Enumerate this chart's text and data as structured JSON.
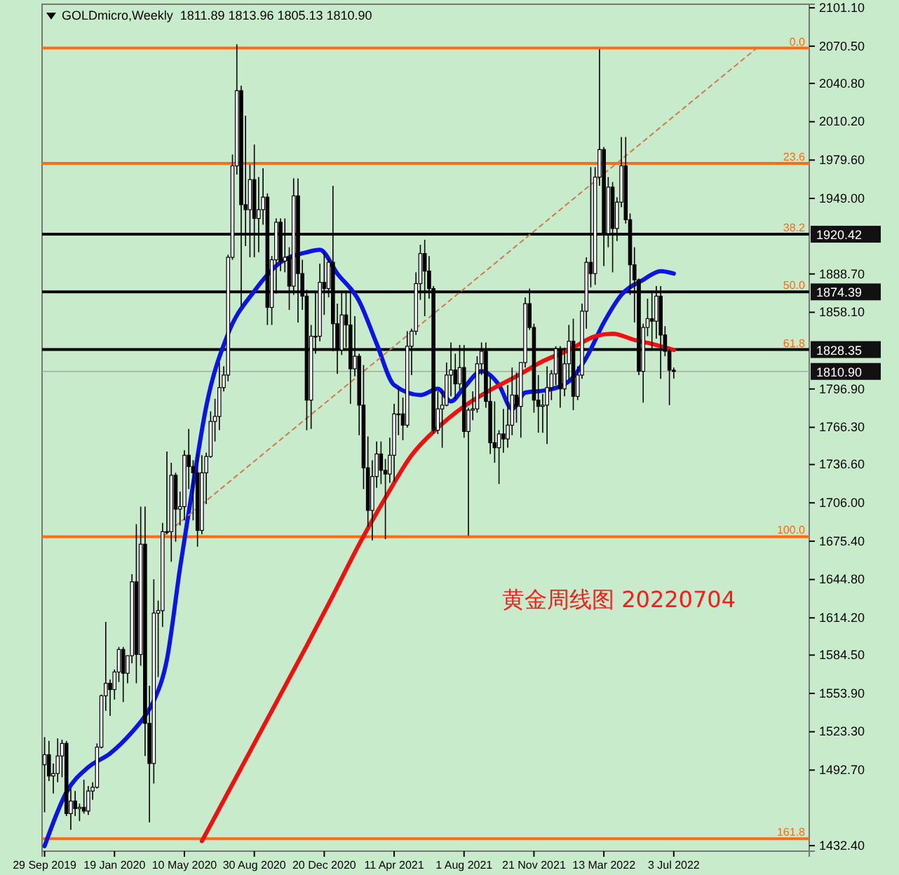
{
  "chart_data": {
    "type": "candlestick",
    "title": "GOLDmicro,Weekly  1811.89 1813.96 1805.13 1810.90",
    "annotations": [
      "黄金周线图 20220704",
      {
        "text": "0.0",
        "x": "2023-02-05",
        "y": 2069
      },
      {
        "text": "23.6",
        "x": "2023-02-05",
        "y": 1977
      },
      {
        "text": "38.2",
        "x": "2023-02-05",
        "y": 1920.42
      },
      {
        "text": "50.0",
        "x": "2023-02-05",
        "y": 1874.39
      },
      {
        "text": "61.8",
        "x": "2023-02-05",
        "y": 1828.35
      },
      {
        "text": "100.0",
        "x": "2023-02-05",
        "y": 1679
      },
      {
        "text": "161.8",
        "x": "2023-02-05",
        "y": 1438
      }
    ],
    "xlim": [
      "2019-09-25",
      "2023-02-05"
    ],
    "xticks": [
      {
        "value": "2019-09-29",
        "label": "29 Sep 2019"
      },
      {
        "value": "2020-01-19",
        "label": "19 Jan 2020"
      },
      {
        "value": "2020-05-10",
        "label": "10 May 2020"
      },
      {
        "value": "2020-08-30",
        "label": "30 Aug 2020"
      },
      {
        "value": "2020-12-20",
        "label": "20 Dec 2020"
      },
      {
        "value": "2021-04-11",
        "label": "11 Apr 2021"
      },
      {
        "value": "2021-08-01",
        "label": "1 Aug 2021"
      },
      {
        "value": "2021-11-21",
        "label": "21 Nov 2021"
      },
      {
        "value": "2022-03-13",
        "label": "13 Mar 2022"
      },
      {
        "value": "2022-07-03",
        "label": "3 Jul 2022"
      }
    ],
    "ylim": [
      1428,
      2104
    ],
    "yticks": [
      {
        "value": 2101.1,
        "label": "2101.10"
      },
      {
        "value": 2070.5,
        "label": "2070.50"
      },
      {
        "value": 2040.8,
        "label": "2040.80"
      },
      {
        "value": 2010.2,
        "label": "2010.20"
      },
      {
        "value": 1979.6,
        "label": "1979.60"
      },
      {
        "value": 1949,
        "label": "1949.00"
      },
      {
        "value": 1888.7,
        "label": "1888.70"
      },
      {
        "value": 1858.1,
        "label": "1858.10"
      },
      {
        "value": 1796.9,
        "label": "1796.90"
      },
      {
        "value": 1766.3,
        "label": "1766.30"
      },
      {
        "value": 1736.6,
        "label": "1736.60"
      },
      {
        "value": 1706,
        "label": "1706.00"
      },
      {
        "value": 1675.4,
        "label": "1675.40"
      },
      {
        "value": 1644.8,
        "label": "1644.80"
      },
      {
        "value": 1614.2,
        "label": "1614.20"
      },
      {
        "value": 1584.5,
        "label": "1584.50"
      },
      {
        "value": 1553.9,
        "label": "1553.90"
      },
      {
        "value": 1523.3,
        "label": "1523.30"
      },
      {
        "value": 1492.7,
        "label": "1492.70"
      },
      {
        "value": 1432.4,
        "label": "1432.40"
      }
    ],
    "ref_lines": [
      {
        "axis": "y",
        "value": 2069,
        "color": "#ff6a13"
      },
      {
        "axis": "y",
        "value": 1977,
        "color": "#ff6a13"
      },
      {
        "axis": "y",
        "value": 1679,
        "color": "#ff6a13"
      },
      {
        "axis": "y",
        "value": 1438,
        "color": "#ff6a13"
      },
      {
        "axis": "y",
        "value": 1920.42,
        "label": "1920.42",
        "color": "#000000"
      },
      {
        "axis": "y",
        "value": 1874.39,
        "label": "1874.39",
        "color": "#000000"
      },
      {
        "axis": "y",
        "value": 1828.35,
        "label": "1828.35",
        "color": "#000000"
      },
      {
        "axis": "y",
        "value": 1810.9,
        "label": "1810.90",
        "color": "#a8a8a8"
      }
    ],
    "x": [
      "2019-09-29",
      "2019-10-06",
      "2019-10-13",
      "2019-10-20",
      "2019-10-27",
      "2019-11-03",
      "2019-11-10",
      "2019-11-17",
      "2019-11-24",
      "2019-12-01",
      "2019-12-08",
      "2019-12-15",
      "2019-12-22",
      "2019-12-29",
      "2020-01-05",
      "2020-01-12",
      "2020-01-19",
      "2020-01-26",
      "2020-02-02",
      "2020-02-09",
      "2020-02-16",
      "2020-02-23",
      "2020-03-01",
      "2020-03-08",
      "2020-03-15",
      "2020-03-22",
      "2020-03-29",
      "2020-04-05",
      "2020-04-12",
      "2020-04-19",
      "2020-04-26",
      "2020-05-03",
      "2020-05-10",
      "2020-05-17",
      "2020-05-24",
      "2020-05-31",
      "2020-06-07",
      "2020-06-14",
      "2020-06-21",
      "2020-06-28",
      "2020-07-05",
      "2020-07-12",
      "2020-07-19",
      "2020-07-26",
      "2020-08-02",
      "2020-08-09",
      "2020-08-16",
      "2020-08-23",
      "2020-08-30",
      "2020-09-06",
      "2020-09-13",
      "2020-09-20",
      "2020-09-27",
      "2020-10-04",
      "2020-10-11",
      "2020-10-18",
      "2020-10-25",
      "2020-11-01",
      "2020-11-08",
      "2020-11-15",
      "2020-11-22",
      "2020-11-29",
      "2020-12-06",
      "2020-12-13",
      "2020-12-20",
      "2020-12-27",
      "2021-01-03",
      "2021-01-10",
      "2021-01-17",
      "2021-01-24",
      "2021-01-31",
      "2021-02-07",
      "2021-02-14",
      "2021-02-21",
      "2021-02-28",
      "2021-03-07",
      "2021-03-14",
      "2021-03-21",
      "2021-03-28",
      "2021-04-04",
      "2021-04-11",
      "2021-04-18",
      "2021-04-25",
      "2021-05-02",
      "2021-05-09",
      "2021-05-16",
      "2021-05-23",
      "2021-05-30",
      "2021-06-06",
      "2021-06-13",
      "2021-06-20",
      "2021-06-27",
      "2021-07-04",
      "2021-07-11",
      "2021-07-18",
      "2021-07-25",
      "2021-08-01",
      "2021-08-08",
      "2021-08-15",
      "2021-08-22",
      "2021-08-29",
      "2021-09-05",
      "2021-09-12",
      "2021-09-19",
      "2021-09-26",
      "2021-10-03",
      "2021-10-10",
      "2021-10-17",
      "2021-10-24",
      "2021-10-31",
      "2021-11-07",
      "2021-11-14",
      "2021-11-21",
      "2021-11-28",
      "2021-12-05",
      "2021-12-12",
      "2021-12-19",
      "2021-12-26",
      "2022-01-02",
      "2022-01-09",
      "2022-01-16",
      "2022-01-23",
      "2022-01-30",
      "2022-02-06",
      "2022-02-13",
      "2022-02-20",
      "2022-02-27",
      "2022-03-06",
      "2022-03-13",
      "2022-03-20",
      "2022-03-27",
      "2022-04-03",
      "2022-04-10",
      "2022-04-17",
      "2022-04-24",
      "2022-05-01",
      "2022-05-08",
      "2022-05-15",
      "2022-05-22",
      "2022-05-29",
      "2022-06-05",
      "2022-06-12",
      "2022-06-19",
      "2022-06-26",
      "2022-07-03"
    ],
    "ohlc": [
      [
        1497,
        1519,
        1459,
        1505
      ],
      [
        1505,
        1516,
        1484,
        1488
      ],
      [
        1488,
        1498,
        1474,
        1490
      ],
      [
        1490,
        1518,
        1483,
        1504
      ],
      [
        1504,
        1517,
        1487,
        1514
      ],
      [
        1514,
        1516,
        1456,
        1458
      ],
      [
        1458,
        1478,
        1445,
        1468
      ],
      [
        1468,
        1476,
        1456,
        1462
      ],
      [
        1462,
        1466,
        1452,
        1463
      ],
      [
        1463,
        1485,
        1458,
        1460
      ],
      [
        1460,
        1480,
        1457,
        1476
      ],
      [
        1476,
        1483,
        1469,
        1479
      ],
      [
        1479,
        1514,
        1478,
        1511
      ],
      [
        1511,
        1553,
        1510,
        1552
      ],
      [
        1552,
        1611,
        1540,
        1562
      ],
      [
        1562,
        1565,
        1536,
        1557
      ],
      [
        1557,
        1573,
        1549,
        1571
      ],
      [
        1571,
        1591,
        1563,
        1589
      ],
      [
        1589,
        1591,
        1547,
        1570
      ],
      [
        1570,
        1584,
        1562,
        1584
      ],
      [
        1584,
        1649,
        1578,
        1643
      ],
      [
        1643,
        1689,
        1562,
        1585
      ],
      [
        1585,
        1703,
        1576,
        1673
      ],
      [
        1673,
        1703,
        1504,
        1530
      ],
      [
        1530,
        1560,
        1451,
        1498
      ],
      [
        1498,
        1645,
        1482,
        1618
      ],
      [
        1618,
        1628,
        1567,
        1620
      ],
      [
        1620,
        1690,
        1607,
        1683
      ],
      [
        1683,
        1747,
        1681,
        1683
      ],
      [
        1683,
        1738,
        1659,
        1728
      ],
      [
        1728,
        1730,
        1675,
        1701
      ],
      [
        1701,
        1715,
        1688,
        1703
      ],
      [
        1703,
        1748,
        1692,
        1744
      ],
      [
        1744,
        1765,
        1717,
        1735
      ],
      [
        1735,
        1740,
        1692,
        1730
      ],
      [
        1730,
        1745,
        1671,
        1684
      ],
      [
        1684,
        1744,
        1681,
        1730
      ],
      [
        1730,
        1746,
        1705,
        1743
      ],
      [
        1743,
        1779,
        1742,
        1771
      ],
      [
        1771,
        1789,
        1755,
        1775
      ],
      [
        1775,
        1818,
        1764,
        1798
      ],
      [
        1798,
        1815,
        1795,
        1808
      ],
      [
        1808,
        1904,
        1803,
        1902
      ],
      [
        1902,
        1984,
        1900,
        1975
      ],
      [
        1975,
        2072,
        1968,
        2035
      ],
      [
        2035,
        2039,
        1863,
        1944
      ],
      [
        1944,
        2015,
        1911,
        1940
      ],
      [
        1940,
        1976,
        1902,
        1964
      ],
      [
        1964,
        1992,
        1902,
        1933
      ],
      [
        1933,
        1966,
        1906,
        1940
      ],
      [
        1940,
        1973,
        1928,
        1950
      ],
      [
        1950,
        1953,
        1848,
        1862
      ],
      [
        1862,
        1903,
        1848,
        1900
      ],
      [
        1900,
        1933,
        1873,
        1930
      ],
      [
        1930,
        1933,
        1891,
        1899
      ],
      [
        1899,
        1933,
        1890,
        1902
      ],
      [
        1902,
        1910,
        1860,
        1879
      ],
      [
        1879,
        1965,
        1872,
        1951
      ],
      [
        1951,
        1965,
        1850,
        1889
      ],
      [
        1889,
        1900,
        1860,
        1871
      ],
      [
        1871,
        1876,
        1764,
        1788
      ],
      [
        1788,
        1848,
        1765,
        1839
      ],
      [
        1839,
        1875,
        1825,
        1839
      ],
      [
        1839,
        1897,
        1835,
        1882
      ],
      [
        1882,
        1906,
        1856,
        1877
      ],
      [
        1877,
        1901,
        1870,
        1898
      ],
      [
        1898,
        1959,
        1827,
        1849
      ],
      [
        1849,
        1865,
        1809,
        1828
      ],
      [
        1828,
        1875,
        1824,
        1856
      ],
      [
        1856,
        1875,
        1830,
        1848
      ],
      [
        1848,
        1875,
        1785,
        1813
      ],
      [
        1813,
        1855,
        1807,
        1823
      ],
      [
        1823,
        1825,
        1760,
        1784
      ],
      [
        1784,
        1816,
        1717,
        1734
      ],
      [
        1734,
        1759,
        1687,
        1700
      ],
      [
        1700,
        1740,
        1676,
        1727
      ],
      [
        1727,
        1755,
        1718,
        1745
      ],
      [
        1745,
        1755,
        1721,
        1732
      ],
      [
        1732,
        1741,
        1677,
        1729
      ],
      [
        1729,
        1758,
        1722,
        1744
      ],
      [
        1744,
        1785,
        1723,
        1777
      ],
      [
        1777,
        1798,
        1760,
        1777
      ],
      [
        1777,
        1790,
        1756,
        1768
      ],
      [
        1768,
        1843,
        1766,
        1831
      ],
      [
        1831,
        1845,
        1808,
        1843
      ],
      [
        1843,
        1890,
        1840,
        1881
      ],
      [
        1881,
        1912,
        1868,
        1905
      ],
      [
        1905,
        1916,
        1855,
        1891
      ],
      [
        1891,
        1903,
        1869,
        1877
      ],
      [
        1877,
        1879,
        1761,
        1764
      ],
      [
        1764,
        1795,
        1761,
        1781
      ],
      [
        1781,
        1795,
        1750,
        1784
      ],
      [
        1784,
        1818,
        1783,
        1808
      ],
      [
        1808,
        1834,
        1791,
        1812
      ],
      [
        1812,
        1825,
        1789,
        1801
      ],
      [
        1801,
        1832,
        1796,
        1814
      ],
      [
        1814,
        1832,
        1758,
        1763
      ],
      [
        1763,
        1782,
        1680,
        1780
      ],
      [
        1780,
        1795,
        1772,
        1781
      ],
      [
        1781,
        1823,
        1778,
        1817
      ],
      [
        1817,
        1834,
        1808,
        1827
      ],
      [
        1827,
        1834,
        1782,
        1787
      ],
      [
        1787,
        1808,
        1745,
        1754
      ],
      [
        1754,
        1787,
        1738,
        1750
      ],
      [
        1750,
        1764,
        1721,
        1761
      ],
      [
        1761,
        1781,
        1746,
        1757
      ],
      [
        1757,
        1800,
        1750,
        1768
      ],
      [
        1768,
        1814,
        1760,
        1792
      ],
      [
        1792,
        1810,
        1770,
        1783
      ],
      [
        1783,
        1818,
        1758,
        1818
      ],
      [
        1818,
        1870,
        1814,
        1865
      ],
      [
        1865,
        1877,
        1844,
        1846
      ],
      [
        1846,
        1849,
        1778,
        1788
      ],
      [
        1788,
        1808,
        1762,
        1783
      ],
      [
        1783,
        1793,
        1762,
        1784
      ],
      [
        1784,
        1815,
        1753,
        1798
      ],
      [
        1798,
        1812,
        1788,
        1809
      ],
      [
        1809,
        1831,
        1800,
        1829
      ],
      [
        1829,
        1831,
        1782,
        1797
      ],
      [
        1797,
        1830,
        1791,
        1817
      ],
      [
        1817,
        1848,
        1804,
        1835
      ],
      [
        1835,
        1853,
        1780,
        1791
      ],
      [
        1791,
        1815,
        1788,
        1808
      ],
      [
        1808,
        1865,
        1805,
        1859
      ],
      [
        1859,
        1902,
        1845,
        1898
      ],
      [
        1898,
        1974,
        1878,
        1889
      ],
      [
        1889,
        1974,
        1880,
        1966
      ],
      [
        1966,
        2068,
        1959,
        1988
      ],
      [
        1988,
        1990,
        1895,
        1921
      ],
      [
        1921,
        1966,
        1910,
        1958
      ],
      [
        1958,
        1962,
        1890,
        1925
      ],
      [
        1925,
        1950,
        1915,
        1946
      ],
      [
        1946,
        1998,
        1942,
        1975
      ],
      [
        1975,
        1998,
        1929,
        1932
      ],
      [
        1932,
        1937,
        1872,
        1896
      ],
      [
        1896,
        1910,
        1850,
        1884
      ],
      [
        1884,
        1885,
        1808,
        1811
      ],
      [
        1811,
        1849,
        1786,
        1846
      ],
      [
        1846,
        1869,
        1839,
        1853
      ],
      [
        1853,
        1874,
        1828,
        1851
      ],
      [
        1851,
        1879,
        1837,
        1871
      ],
      [
        1871,
        1879,
        1805,
        1840
      ],
      [
        1840,
        1847,
        1823,
        1827
      ],
      [
        1827,
        1829,
        1784,
        1811.89
      ],
      [
        1811.89,
        1813.96,
        1805.13,
        1810.9
      ]
    ],
    "series": [
      {
        "type": "line",
        "color": "#0a14e6",
        "line_style": "solid",
        "x": [
          "2019-09-29",
          "2019-11-03",
          "2019-12-08",
          "2020-01-12",
          "2020-02-16",
          "2020-03-08",
          "2020-03-22",
          "2020-04-12",
          "2020-05-03",
          "2020-05-24",
          "2020-06-14",
          "2020-07-19",
          "2020-08-30",
          "2020-10-11",
          "2020-11-22",
          "2020-12-13",
          "2021-01-10",
          "2021-02-14",
          "2021-03-14",
          "2021-04-11",
          "2021-05-23",
          "2021-06-20",
          "2021-07-11",
          "2021-08-01",
          "2021-08-29",
          "2021-09-26",
          "2021-10-17",
          "2021-11-07",
          "2021-12-12",
          "2022-01-16",
          "2022-02-13",
          "2022-03-13",
          "2022-04-10",
          "2022-05-15",
          "2022-06-12",
          "2022-07-03"
        ],
        "values": [
          1432,
          1475,
          1495,
          1506,
          1523,
          1536,
          1548,
          1581,
          1654,
          1721,
          1783,
          1841,
          1875,
          1898,
          1906,
          1908,
          1889,
          1867,
          1833,
          1800,
          1792,
          1797,
          1787,
          1798,
          1811,
          1800,
          1781,
          1794,
          1796,
          1803,
          1822,
          1850,
          1872,
          1884,
          1891,
          1889
        ]
      },
      {
        "type": "line",
        "color": "#f01010",
        "line_style": "solid",
        "x": [
          "2020-06-07",
          "2020-07-19",
          "2020-08-30",
          "2020-10-11",
          "2020-11-22",
          "2021-01-03",
          "2021-02-14",
          "2021-03-28",
          "2021-05-09",
          "2021-06-20",
          "2021-08-01",
          "2021-09-12",
          "2021-10-24",
          "2021-12-05",
          "2022-01-16",
          "2022-02-27",
          "2022-03-27",
          "2022-05-01",
          "2022-06-05",
          "2022-07-03"
        ],
        "values": [
          1436,
          1475,
          1514,
          1553,
          1592,
          1632,
          1673,
          1710,
          1744,
          1766,
          1783,
          1796,
          1807,
          1819,
          1828,
          1839,
          1841,
          1836,
          1832,
          1828
        ]
      },
      {
        "type": "line",
        "color": "#d2784a",
        "line_style": "dashed",
        "x": [
          "2020-04-05",
          "2022-11-13"
        ],
        "values": [
          1679,
          2069
        ]
      }
    ]
  }
}
